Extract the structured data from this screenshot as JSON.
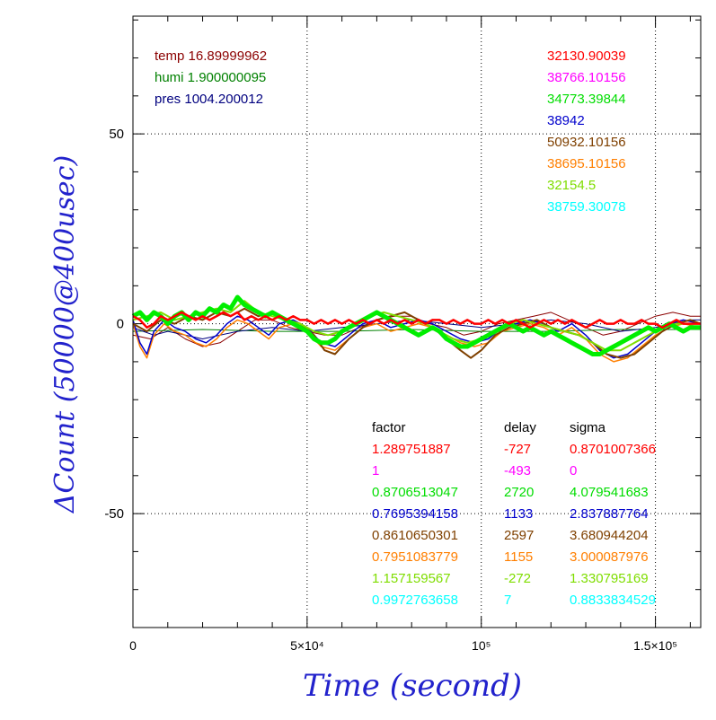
{
  "chart_data": {
    "type": "line",
    "xlabel": "Time (second)",
    "ylabel": "ΔCount (50000@400usec)",
    "xlim": [
      0,
      163000
    ],
    "ylim": [
      -80,
      81
    ],
    "x_ticks": [
      {
        "value": 0,
        "label": "0"
      },
      {
        "value": 50000,
        "label": "5×10⁴"
      },
      {
        "value": 100000,
        "label": "10⁵"
      },
      {
        "value": 150000,
        "label": "1.5×10⁵"
      }
    ],
    "y_ticks": [
      {
        "value": 50,
        "label": "50"
      },
      {
        "value": 0,
        "label": "0"
      },
      {
        "value": -50,
        "label": "-50"
      }
    ],
    "grid": "dotted, at major ticks",
    "env_readings": [
      {
        "label": "temp 16.89999962",
        "color": "#8b0000"
      },
      {
        "label": "humi 1.900000095",
        "color": "#008000"
      },
      {
        "label": "pres 1004.200012",
        "color": "#00007f"
      }
    ],
    "table_header": {
      "factor": "factor",
      "delay": "delay",
      "sigma": "sigma"
    },
    "series": [
      {
        "name": "32130.90039",
        "color": "#ff0000",
        "factor": "1.289751887",
        "delay": "-727",
        "sigma": "0.8701007366"
      },
      {
        "name": "38766.10156",
        "color": "#ff00ff",
        "factor": "1",
        "delay": "-493",
        "sigma": "0"
      },
      {
        "name": "34773.39844",
        "color": "#00dd00",
        "factor": "0.8706513047",
        "delay": "2720",
        "sigma": "4.079541683"
      },
      {
        "name": "38942",
        "color": "#0000cc",
        "factor": "0.7695394158",
        "delay": "1133",
        "sigma": "2.837887764"
      },
      {
        "name": "50932.10156",
        "color": "#7f4000",
        "factor": "0.8610650301",
        "delay": "2597",
        "sigma": "3.680944204"
      },
      {
        "name": "38695.10156",
        "color": "#ff7f00",
        "factor": "0.7951083779",
        "delay": "1155",
        "sigma": "3.000087976"
      },
      {
        "name": "32154.5",
        "color": "#7fdd00",
        "factor": "1.157159567",
        "delay": "-272",
        "sigma": "1.330795169"
      },
      {
        "name": "38759.30078",
        "color": "#00ffff",
        "factor": "0.9972763658",
        "delay": "7",
        "sigma": "0.8833834529"
      }
    ],
    "curves": [
      {
        "id": "temp",
        "color": "#8b0000",
        "width": 1,
        "x": [
          0,
          5000,
          10000,
          15000,
          20000,
          25000,
          30000,
          35000,
          40000,
          45000,
          50000,
          55000,
          60000,
          65000,
          70000,
          75000,
          80000,
          85000,
          90000,
          95000,
          100000,
          105000,
          110000,
          115000,
          120000,
          125000,
          130000,
          135000,
          140000,
          145000,
          150000,
          155000,
          160000,
          163000
        ],
        "y": [
          -3,
          -4,
          -1,
          -4,
          -6,
          -5,
          -2,
          1,
          1,
          -1,
          -2,
          -3,
          -3,
          -1,
          1,
          2,
          2,
          0,
          -1,
          -3,
          -2,
          0,
          1,
          2,
          3,
          1,
          -1,
          -3,
          -2,
          0,
          2,
          3,
          2,
          2
        ]
      },
      {
        "id": "humi",
        "color": "#008000",
        "width": 1,
        "x": [
          0,
          20000,
          40000,
          60000,
          80000,
          100000,
          120000,
          140000,
          163000
        ],
        "y": [
          -2,
          -1.5,
          -2,
          -2,
          -1.5,
          -2,
          -2,
          -1.5,
          -1.5
        ]
      },
      {
        "id": "pres",
        "color": "#00007f",
        "width": 1,
        "x": [
          0,
          3000,
          6000,
          10000,
          15000,
          20000,
          30000,
          40000,
          50000,
          60000,
          70000,
          80000,
          90000,
          100000,
          110000,
          120000,
          130000,
          140000,
          150000,
          155000,
          160000,
          163000
        ],
        "y": [
          -1,
          -2,
          -3,
          -2,
          -3,
          -4,
          -2,
          -1,
          -2,
          -1,
          0,
          1,
          0,
          -1,
          0,
          1,
          0,
          -2,
          -1,
          0,
          1,
          1
        ]
      },
      {
        "id": "s-orange",
        "color": "#ff7f00",
        "width": 1.5,
        "x": [
          0,
          2000,
          4000,
          6000,
          9000,
          12000,
          15000,
          18000,
          21000,
          24000,
          27000,
          30000,
          33000,
          36000,
          39000,
          42000,
          46000,
          50000,
          54000,
          58000,
          62000,
          66000,
          70000,
          74000,
          78000,
          82000,
          86000,
          90000,
          94000,
          98000,
          102000,
          106000,
          110000,
          114000,
          118000,
          122000,
          126000,
          130000,
          134000,
          138000,
          142000,
          146000,
          150000,
          154000,
          158000,
          163000
        ],
        "y": [
          0,
          -6,
          -9,
          -3,
          0,
          -2,
          -3,
          -5,
          -6,
          -4,
          -1,
          1,
          0,
          -2,
          -4,
          -1,
          0,
          -2,
          -6,
          -7,
          -4,
          -1,
          0,
          -2,
          -1,
          0,
          -1,
          -3,
          -5,
          -6,
          -5,
          -2,
          -1,
          0,
          -1,
          -3,
          -1,
          -4,
          -8,
          -10,
          -9,
          -6,
          -3,
          -1,
          0,
          -1
        ]
      },
      {
        "id": "s-blue",
        "color": "#0000cc",
        "width": 1.5,
        "x": [
          0,
          2000,
          4000,
          6000,
          9000,
          12000,
          15000,
          18000,
          21000,
          24000,
          27000,
          30000,
          33000,
          36000,
          39000,
          42000,
          46000,
          50000,
          54000,
          58000,
          62000,
          66000,
          70000,
          74000,
          78000,
          82000,
          86000,
          90000,
          94000,
          98000,
          102000,
          106000,
          110000,
          114000,
          118000,
          122000,
          126000,
          130000,
          134000,
          138000,
          142000,
          146000,
          150000,
          154000,
          158000,
          163000
        ],
        "y": [
          1,
          -5,
          -8,
          -2,
          1,
          -1,
          -2,
          -4,
          -5,
          -3,
          0,
          2,
          1,
          -1,
          -3,
          0,
          1,
          -1,
          -5,
          -6,
          -3,
          0,
          1,
          -1,
          0,
          1,
          0,
          -2,
          -4,
          -5,
          -4,
          -1,
          0,
          1,
          0,
          -2,
          0,
          -3,
          -7,
          -9,
          -8,
          -5,
          -2,
          0,
          1,
          0
        ]
      },
      {
        "id": "s-brown",
        "color": "#7f4000",
        "width": 2,
        "x": [
          0,
          4000,
          8000,
          12000,
          16000,
          20000,
          24000,
          28000,
          32000,
          36000,
          40000,
          44000,
          48000,
          52000,
          55000,
          58000,
          62000,
          66000,
          70000,
          74000,
          78000,
          82000,
          86000,
          90000,
          94000,
          97000,
          100000,
          104000,
          108000,
          112000,
          116000,
          120000,
          124000,
          128000,
          132000,
          136000,
          140000,
          144000,
          148000,
          152000,
          156000,
          160000,
          163000
        ],
        "y": [
          0,
          -2,
          1,
          0,
          2,
          1,
          3,
          2,
          4,
          2,
          3,
          1,
          0,
          -3,
          -7,
          -8,
          -4,
          -1,
          1,
          2,
          3,
          1,
          -1,
          -4,
          -7,
          -9,
          -7,
          -3,
          -1,
          0,
          1,
          -1,
          -2,
          -3,
          -5,
          -8,
          -9,
          -8,
          -5,
          -2,
          0,
          1,
          0
        ]
      },
      {
        "id": "s-lime",
        "color": "#7fdd00",
        "width": 2,
        "x": [
          0,
          4000,
          8000,
          12000,
          16000,
          20000,
          24000,
          28000,
          32000,
          36000,
          40000,
          44000,
          48000,
          52000,
          56000,
          60000,
          64000,
          68000,
          72000,
          76000,
          80000,
          84000,
          88000,
          92000,
          96000,
          100000,
          104000,
          108000,
          112000,
          116000,
          120000,
          124000,
          128000,
          132000,
          136000,
          140000,
          144000,
          148000,
          152000,
          156000,
          160000,
          163000
        ],
        "y": [
          1,
          2,
          3,
          1,
          2,
          3,
          4,
          3,
          6,
          3,
          2,
          1,
          0,
          -2,
          -3,
          -2,
          0,
          2,
          3,
          2,
          1,
          0,
          -2,
          -4,
          -5,
          -4,
          -2,
          0,
          1,
          0,
          -1,
          -2,
          -3,
          -5,
          -7,
          -7,
          -5,
          -3,
          -1,
          0,
          0,
          0
        ]
      },
      {
        "id": "s-green",
        "color": "#00ee00",
        "width": 5,
        "x": [
          0,
          2000,
          4000,
          6000,
          8000,
          10000,
          12000,
          14000,
          16000,
          18000,
          20000,
          22000,
          24000,
          26000,
          28000,
          30000,
          32000,
          34000,
          36000,
          38000,
          40000,
          42000,
          44000,
          46000,
          48000,
          50000,
          52000,
          54000,
          56000,
          58000,
          60000,
          62000,
          64000,
          66000,
          68000,
          70000,
          72000,
          74000,
          76000,
          78000,
          80000,
          82000,
          84000,
          86000,
          88000,
          90000,
          92000,
          94000,
          96000,
          98000,
          100000,
          102000,
          104000,
          106000,
          108000,
          110000,
          112000,
          114000,
          116000,
          118000,
          120000,
          122000,
          124000,
          126000,
          128000,
          130000,
          132000,
          134000,
          136000,
          138000,
          140000,
          142000,
          144000,
          146000,
          148000,
          150000,
          152000,
          154000,
          156000,
          158000,
          160000,
          163000
        ],
        "y": [
          2,
          3,
          1,
          3,
          2,
          0,
          2,
          3,
          1,
          3,
          2,
          4,
          3,
          5,
          4,
          7,
          5,
          4,
          3,
          2,
          3,
          2,
          1,
          0,
          -1,
          -2,
          -4,
          -5,
          -5,
          -4,
          -2,
          -1,
          0,
          1,
          2,
          3,
          2,
          1,
          0,
          -1,
          -2,
          -3,
          -2,
          -1,
          -2,
          -4,
          -5,
          -6,
          -6,
          -5,
          -4,
          -3,
          -2,
          -1,
          0,
          -1,
          -2,
          -1,
          -2,
          -3,
          -2,
          -3,
          -4,
          -5,
          -6,
          -7,
          -8,
          -8,
          -7,
          -6,
          -5,
          -4,
          -3,
          -2,
          -1,
          -2,
          -1,
          0,
          -1,
          -2,
          -1,
          -1
        ]
      },
      {
        "id": "s-red",
        "color": "#ff0000",
        "width": 2.5,
        "x": [
          0,
          2000,
          4000,
          6000,
          8000,
          10000,
          12000,
          14000,
          16000,
          18000,
          20000,
          22000,
          24000,
          26000,
          28000,
          30000,
          32000,
          34000,
          36000,
          38000,
          40000,
          42000,
          44000,
          46000,
          48000,
          50000,
          52000,
          54000,
          56000,
          58000,
          60000,
          62000,
          64000,
          66000,
          68000,
          70000,
          72000,
          74000,
          76000,
          78000,
          80000,
          82000,
          84000,
          86000,
          88000,
          90000,
          92000,
          94000,
          96000,
          98000,
          100000,
          102000,
          104000,
          106000,
          108000,
          110000,
          112000,
          114000,
          116000,
          118000,
          120000,
          122000,
          124000,
          126000,
          128000,
          130000,
          132000,
          134000,
          136000,
          138000,
          140000,
          142000,
          144000,
          146000,
          148000,
          150000,
          152000,
          154000,
          156000,
          158000,
          160000,
          163000
        ],
        "y": [
          2,
          1,
          -1,
          0,
          2,
          1,
          2,
          3,
          2,
          1,
          2,
          1,
          2,
          3,
          2,
          3,
          1,
          2,
          1,
          2,
          1,
          2,
          1,
          2,
          1,
          1,
          0,
          1,
          0,
          1,
          0,
          1,
          0,
          1,
          0,
          1,
          0,
          1,
          0,
          1,
          0,
          1,
          0,
          1,
          1,
          0,
          1,
          0,
          1,
          0,
          0,
          1,
          0,
          1,
          0,
          1,
          0,
          -1,
          0,
          1,
          0,
          1,
          0,
          1,
          0,
          -1,
          0,
          1,
          0,
          0,
          1,
          0,
          0,
          1,
          0,
          0,
          -1,
          0,
          1,
          0,
          0,
          0
        ]
      }
    ]
  }
}
